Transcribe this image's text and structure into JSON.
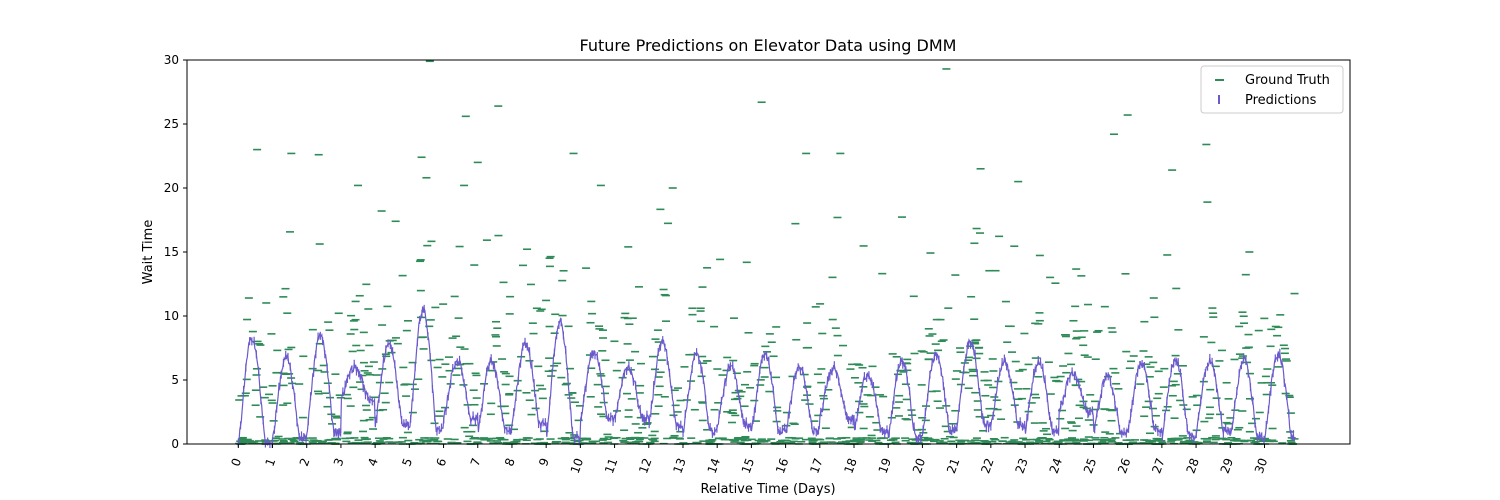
{
  "chart_data": {
    "type": "scatter",
    "title": "Future Predictions on Elevator Data using DMM",
    "xlabel": "Relative Time (Days)",
    "ylabel": "Wait Time",
    "xlim": [
      -1.5,
      32.5
    ],
    "ylim": [
      0,
      30
    ],
    "x_ticks": [
      0,
      1,
      2,
      3,
      4,
      5,
      6,
      7,
      8,
      9,
      10,
      11,
      12,
      13,
      14,
      15,
      16,
      17,
      18,
      19,
      20,
      21,
      22,
      23,
      24,
      25,
      26,
      27,
      28,
      29,
      30
    ],
    "y_ticks": [
      0,
      5,
      10,
      15,
      20,
      25,
      30
    ],
    "grid": false,
    "legend": {
      "position": "upper right",
      "entries": [
        "Ground Truth",
        "Predictions"
      ]
    },
    "colors": {
      "ground_truth": "#2e8b57",
      "predictions": "#6a5acd"
    },
    "series": [
      {
        "name": "Ground Truth",
        "marker": "_",
        "description_points": [
          [
            0.55,
            23.0
          ],
          [
            1.55,
            22.7
          ],
          [
            2.35,
            22.6
          ],
          [
            5.5,
            20.8
          ],
          [
            5.6,
            29.9
          ],
          [
            6.65,
            25.6
          ],
          [
            7.6,
            26.4
          ],
          [
            9.8,
            22.7
          ],
          [
            15.3,
            26.7
          ],
          [
            20.7,
            29.3
          ],
          [
            25.6,
            24.2
          ],
          [
            26.0,
            25.7
          ],
          [
            28.3,
            23.4
          ],
          [
            6.6,
            20.2
          ],
          [
            3.5,
            20.2
          ],
          [
            10.6,
            20.2
          ],
          [
            12.7,
            20.0
          ],
          [
            16.6,
            22.7
          ],
          [
            17.6,
            22.7
          ],
          [
            21.7,
            21.5
          ],
          [
            7.0,
            22.0
          ],
          [
            22.8,
            20.5
          ],
          [
            27.3,
            21.4
          ],
          [
            11.4,
            15.4
          ],
          [
            4.6,
            17.4
          ]
        ]
      },
      {
        "name": "Predictions",
        "marker": "|",
        "daily_peaks": [
          8.3,
          6.7,
          8.5,
          6.0,
          7.8,
          10.5,
          6.5,
          6.5,
          7.8,
          9.5,
          7.2,
          6.0,
          8.0,
          7.0,
          6.0,
          7.0,
          6.0,
          6.0,
          5.5,
          6.5,
          7.0,
          8.0,
          6.5,
          6.5,
          5.5,
          5.3,
          6.3,
          6.5,
          6.5,
          6.5,
          7.0
        ],
        "daily_troughs": [
          0.0,
          0.5,
          1.0,
          3.5,
          1.5,
          1.0,
          2.0,
          1.0,
          1.5,
          0.5,
          2.0,
          2.0,
          1.5,
          1.0,
          1.5,
          1.0,
          1.0,
          2.0,
          1.0,
          0.5,
          1.0,
          1.5,
          1.5,
          1.0,
          2.5,
          1.0,
          1.0,
          0.5,
          1.0,
          0.5,
          0.5
        ]
      }
    ]
  }
}
